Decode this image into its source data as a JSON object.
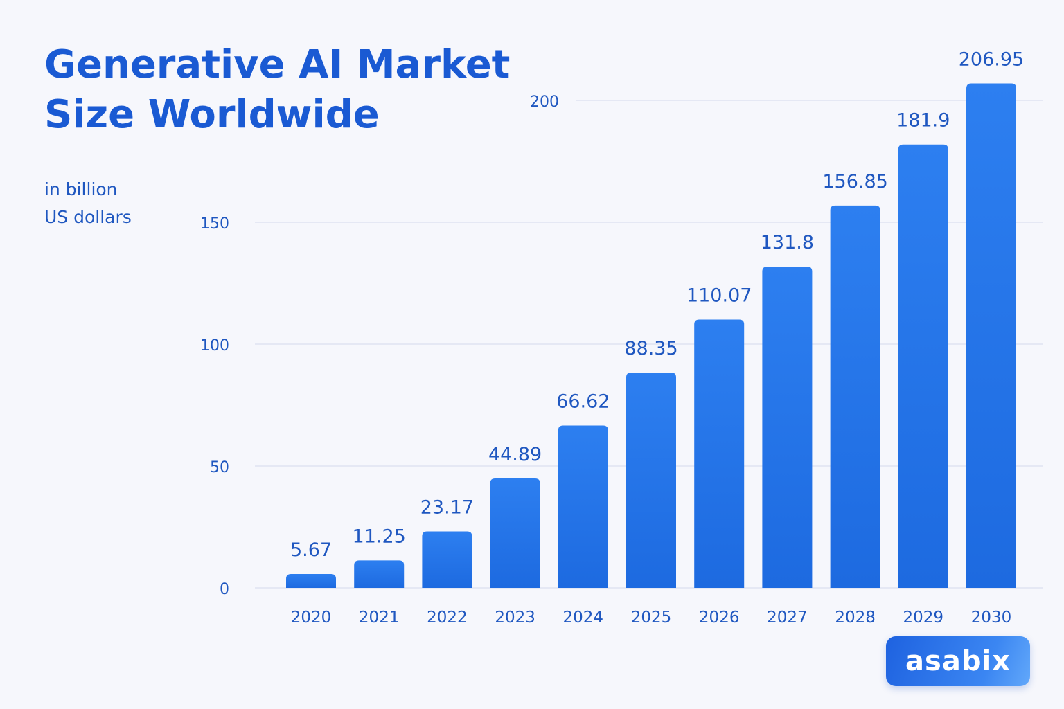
{
  "title": "Generative AI Market Size Worldwide",
  "subtitle": {
    "line1": "in billion",
    "line2": "US dollars"
  },
  "brand": {
    "logo_text": "asabix"
  },
  "colors": {
    "title": "#1a5ad3",
    "text": "#1f57c0",
    "bar_top": "#2d7ff0",
    "bar_bottom": "#1d6ae0",
    "grid": "#dfe4f2",
    "background": "#f6f7fc"
  },
  "chart_data": {
    "type": "bar",
    "title": "Generative AI Market Size Worldwide",
    "ylabel": "in billion US dollars",
    "xlabel": "",
    "categories": [
      "2020",
      "2021",
      "2022",
      "2023",
      "2024",
      "2025",
      "2026",
      "2027",
      "2028",
      "2029",
      "2030"
    ],
    "values": [
      5.67,
      11.25,
      23.17,
      44.89,
      66.62,
      88.35,
      110.07,
      131.8,
      156.85,
      181.9,
      206.95
    ],
    "value_labels": [
      "5.67",
      "11.25",
      "23.17",
      "44.89",
      "66.62",
      "88.35",
      "110.07",
      "131.8",
      "156.85",
      "181.9",
      "206.95"
    ],
    "y_ticks": [
      0,
      50,
      100,
      150,
      200
    ],
    "ylim": [
      0,
      200
    ],
    "grid": true,
    "legend": "none"
  }
}
